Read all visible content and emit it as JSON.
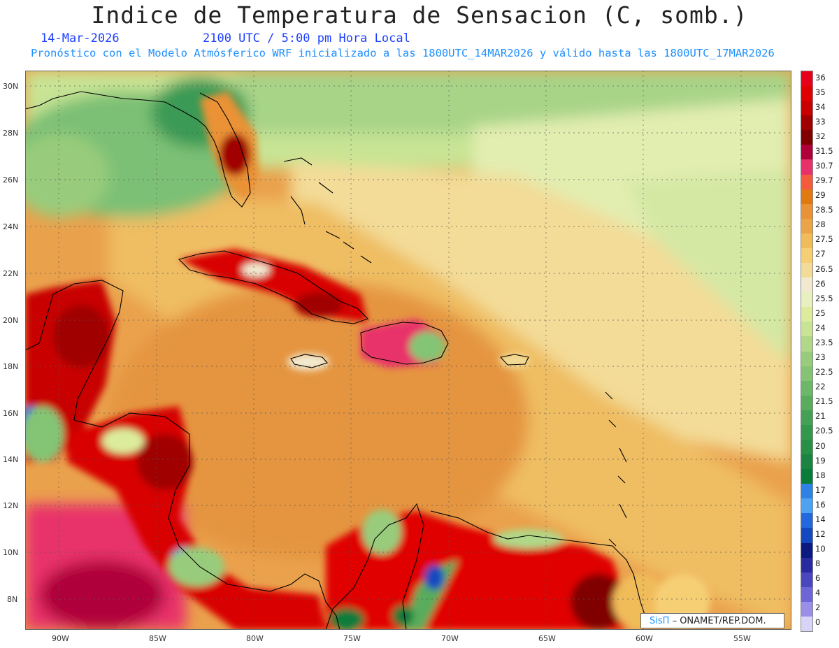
{
  "header": {
    "title": "Indice de Temperatura de Sensacion (C, somb.)",
    "date": "14-Mar-2026",
    "time": "2100 UTC / 5:00 pm Hora Local",
    "description": "Pronóstico con el Modelo Atmósferico WRF inicializado a las 1800UTC_14MAR2026 y válido hasta las  1800UTC_17MAR2026"
  },
  "map": {
    "lat_labels": [
      "30N",
      "28N",
      "26N",
      "24N",
      "22N",
      "20N",
      "18N",
      "16N",
      "14N",
      "12N",
      "10N",
      "8N"
    ],
    "lon_labels": [
      "90W",
      "85W",
      "80W",
      "75W",
      "70W",
      "65W",
      "60W",
      "55W"
    ],
    "grid": true
  },
  "legend": {
    "levels": [
      "36",
      "35",
      "34",
      "33",
      "32",
      "31.5",
      "30.7",
      "29.7",
      "29",
      "28.5",
      "28",
      "27.5",
      "27",
      "26.5",
      "26",
      "25.5",
      "25",
      "24",
      "23.5",
      "23",
      "22.5",
      "22",
      "21.5",
      "21",
      "20.5",
      "20",
      "19",
      "18",
      "17",
      "16",
      "14",
      "12",
      "10",
      "8",
      "6",
      "4",
      "2",
      "0"
    ],
    "colors": [
      "#e8001a",
      "#e00000",
      "#c80000",
      "#a00000",
      "#800000",
      "#b0003a",
      "#e8306a",
      "#f45a3c",
      "#e27810",
      "#ea9236",
      "#eca448",
      "#f0bc5a",
      "#f6cf74",
      "#f2dc98",
      "#f2ead0",
      "#e8f0c0",
      "#dcec9c",
      "#c8e494",
      "#b0d888",
      "#98cc7c",
      "#84c474",
      "#6cb868",
      "#58ac5c",
      "#44a054",
      "#34984c",
      "#289044",
      "#1a8440",
      "#0a7c3a",
      "#2e82e6",
      "#4ea2f2",
      "#2468e0",
      "#1448c0",
      "#0a1a80",
      "#2a2aa0",
      "#4a46c0",
      "#6e66d8",
      "#9a8ee8",
      "#d8d4f8"
    ]
  },
  "credit": {
    "sis": "SisΠ",
    "org": "– ONAMET/REP.DOM."
  }
}
